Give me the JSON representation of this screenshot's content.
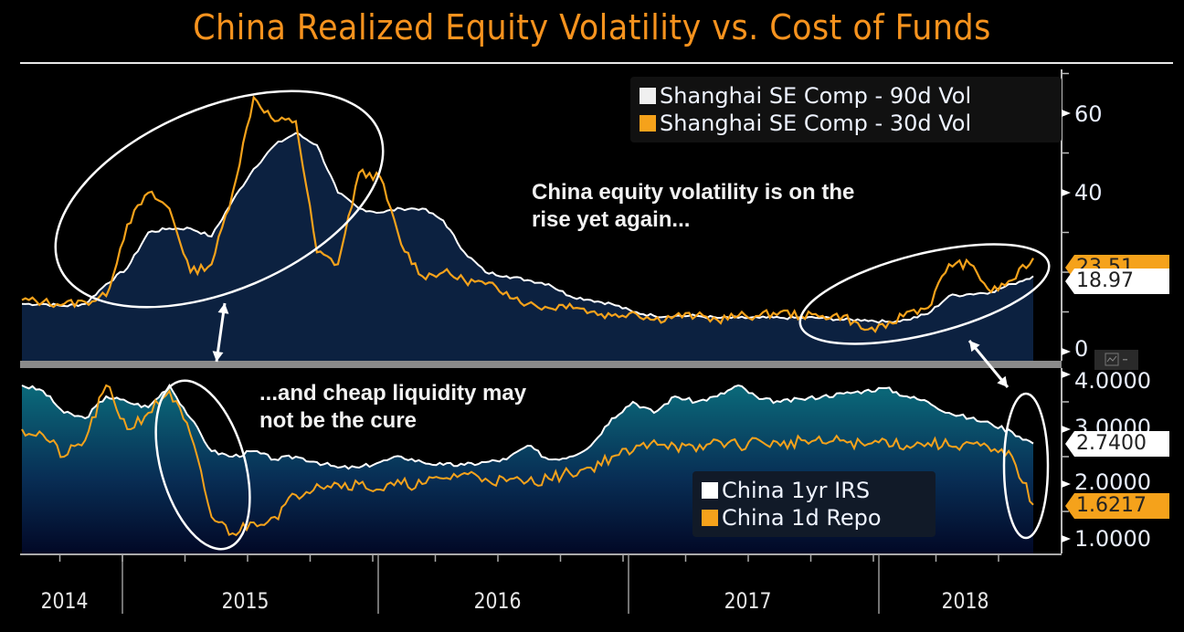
{
  "title": "China Realized Equity Volatility vs. Cost of Funds",
  "chart_data": [
    {
      "type": "area",
      "panel": "top",
      "title": "China Realized Equity Volatility vs. Cost of Funds",
      "xlabel": "",
      "ylabel": "",
      "ylim": [
        0,
        70
      ],
      "yticks": [
        0,
        40,
        60
      ],
      "ytick_labels": [
        "0",
        "40",
        "60"
      ],
      "x": [
        "2014-08",
        "2014-09",
        "2014-10",
        "2014-11",
        "2014-12",
        "2015-01",
        "2015-02",
        "2015-03",
        "2015-04",
        "2015-05",
        "2015-06",
        "2015-07",
        "2015-08",
        "2015-09",
        "2015-10",
        "2015-11",
        "2015-12",
        "2016-01",
        "2016-02",
        "2016-03",
        "2016-04",
        "2016-05",
        "2016-06",
        "2016-07",
        "2016-08",
        "2016-09",
        "2016-10",
        "2016-11",
        "2016-12",
        "2017-01",
        "2017-02",
        "2017-03",
        "2017-04",
        "2017-05",
        "2017-06",
        "2017-07",
        "2017-08",
        "2017-09",
        "2017-10",
        "2017-11",
        "2017-12",
        "2018-01",
        "2018-02",
        "2018-03",
        "2018-04",
        "2018-05",
        "2018-06",
        "2018-07",
        "2018-08"
      ],
      "series": [
        {
          "name": "Shanghai SE Comp - 90d Vol",
          "color": "#ffffff",
          "fill": "#0c2140",
          "values": [
            12,
            12,
            11.5,
            12,
            17,
            21,
            30,
            31,
            31,
            29,
            38,
            46,
            52,
            55,
            52,
            40,
            36,
            35,
            36,
            36,
            33,
            25,
            20,
            19,
            18,
            17,
            14,
            13,
            12,
            10,
            9,
            9,
            9,
            8.5,
            8.5,
            8.5,
            8.5,
            8.5,
            8.5,
            8,
            8,
            7.5,
            8,
            9.5,
            14,
            14.5,
            15,
            17,
            19
          ]
        },
        {
          "name": "Shanghai SE Comp - 30d Vol",
          "color": "#f5a21b",
          "values": [
            13,
            12.5,
            12,
            12.5,
            14,
            32,
            40,
            36,
            20,
            22,
            40,
            64,
            58,
            58,
            25,
            22,
            45,
            44,
            27,
            19,
            20,
            18,
            17,
            15,
            12,
            11,
            12,
            10,
            9,
            10,
            8,
            9,
            9,
            8,
            9,
            9,
            10,
            9,
            9,
            9,
            5.5,
            6,
            10,
            11,
            22,
            22,
            15,
            18,
            23.51
          ]
        }
      ],
      "last_values": {
        "Shanghai SE Comp - 90d Vol": "18.97",
        "Shanghai SE Comp - 30d Vol": "23.51"
      },
      "legend": "top-right",
      "annotations": [
        "China equity volatility is on the rise yet again..."
      ]
    },
    {
      "type": "area",
      "panel": "bottom",
      "xlabel": "",
      "ylabel": "",
      "ylim": [
        0.7,
        4.1
      ],
      "yticks": [
        1.0,
        2.0,
        3.0,
        4.0
      ],
      "ytick_labels": [
        "1.0000",
        "2.0000",
        "3.0000",
        "4.0000"
      ],
      "x": [
        "2014-08",
        "2014-09",
        "2014-10",
        "2014-11",
        "2014-12",
        "2015-01",
        "2015-02",
        "2015-03",
        "2015-04",
        "2015-05",
        "2015-06",
        "2015-07",
        "2015-08",
        "2015-09",
        "2015-10",
        "2015-11",
        "2015-12",
        "2016-01",
        "2016-02",
        "2016-03",
        "2016-04",
        "2016-05",
        "2016-06",
        "2016-07",
        "2016-08",
        "2016-09",
        "2016-10",
        "2016-11",
        "2016-12",
        "2017-01",
        "2017-02",
        "2017-03",
        "2017-04",
        "2017-05",
        "2017-06",
        "2017-07",
        "2017-08",
        "2017-09",
        "2017-10",
        "2017-11",
        "2017-12",
        "2018-01",
        "2018-02",
        "2018-03",
        "2018-04",
        "2018-05",
        "2018-06",
        "2018-07",
        "2018-08"
      ],
      "series": [
        {
          "name": "China 1yr IRS",
          "color": "#ffffff",
          "fill": "#0a5a6e",
          "values": [
            3.8,
            3.7,
            3.3,
            3.2,
            3.6,
            3.5,
            3.4,
            3.8,
            3.2,
            2.6,
            2.5,
            2.6,
            2.45,
            2.5,
            2.4,
            2.3,
            2.3,
            2.4,
            2.5,
            2.4,
            2.35,
            2.35,
            2.4,
            2.45,
            2.7,
            2.45,
            2.5,
            2.7,
            3.2,
            3.5,
            3.3,
            3.6,
            3.5,
            3.6,
            3.8,
            3.55,
            3.5,
            3.55,
            3.6,
            3.65,
            3.7,
            3.75,
            3.6,
            3.5,
            3.3,
            3.2,
            3.1,
            2.95,
            2.74
          ]
        },
        {
          "name": "China 1d Repo",
          "color": "#f5a21b",
          "values": [
            3.0,
            2.9,
            2.5,
            2.8,
            3.8,
            3.0,
            3.3,
            3.7,
            2.9,
            1.4,
            1.1,
            1.3,
            1.4,
            1.8,
            2.0,
            2.0,
            2.0,
            1.9,
            2.0,
            2.0,
            2.1,
            2.2,
            2.1,
            2.05,
            2.05,
            2.1,
            2.2,
            2.3,
            2.5,
            2.6,
            2.8,
            2.7,
            2.6,
            2.8,
            2.7,
            2.8,
            2.7,
            2.8,
            2.75,
            2.8,
            2.7,
            2.8,
            2.7,
            2.75,
            2.7,
            2.75,
            2.6,
            2.5,
            1.6217
          ]
        }
      ],
      "last_values": {
        "China 1yr IRS": "2.7400",
        "China 1d Repo": "1.6217"
      },
      "legend": "bottom-center",
      "annotations": [
        "...and cheap liquidity may not be the cure"
      ]
    }
  ],
  "x_axis": {
    "labels": [
      "2014",
      "2015",
      "2016",
      "2017",
      "2018"
    ]
  },
  "top_panel": {
    "legend": [
      {
        "label": "Shanghai SE Comp - 90d Vol",
        "color": "#f0f0f0"
      },
      {
        "label": "Shanghai SE Comp - 30d Vol",
        "color": "#f5a21b"
      }
    ],
    "annotation": "China equity volatility is on the\nrise yet again...",
    "tag_90d": "18.97",
    "tag_30d": "23.51",
    "yticks": [
      "60",
      "40",
      "0"
    ]
  },
  "bottom_panel": {
    "legend": [
      {
        "label": "China 1yr IRS",
        "color": "#ffffff"
      },
      {
        "label": "China 1d Repo",
        "color": "#f5a21b"
      }
    ],
    "annotation": "...and cheap liquidity may\nnot be the cure",
    "tag_irs": "2.7400",
    "tag_repo": "1.6217",
    "yticks": [
      "4.0000",
      "3.0000",
      "2.0000",
      "1.0000"
    ]
  }
}
